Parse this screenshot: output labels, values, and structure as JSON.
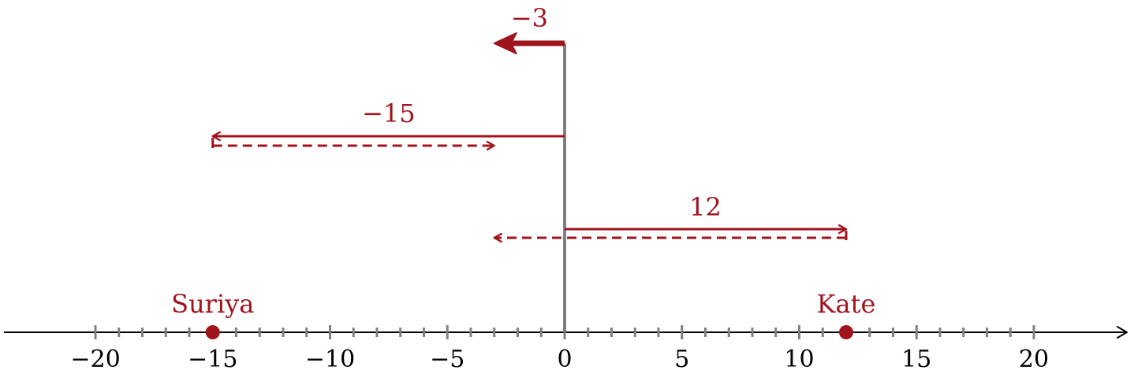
{
  "colors": {
    "accent": "#a0141e",
    "axis": "#000000",
    "tick": "#808080",
    "zero_line": "#808080"
  },
  "number_line": {
    "min": -24,
    "max": 24,
    "minor_tick_step": 1,
    "tick_labels": [
      {
        "value": -20,
        "text": "−20"
      },
      {
        "value": -15,
        "text": "−15"
      },
      {
        "value": -10,
        "text": "−10"
      },
      {
        "value": -5,
        "text": "−5"
      },
      {
        "value": 0,
        "text": "0"
      },
      {
        "value": 5,
        "text": "5"
      },
      {
        "value": 10,
        "text": "10"
      },
      {
        "value": 15,
        "text": "15"
      },
      {
        "value": 20,
        "text": "20"
      }
    ]
  },
  "points": [
    {
      "value": -15,
      "label": "Suriya"
    },
    {
      "value": 12,
      "label": "Kate"
    }
  ],
  "arrows": [
    {
      "label": "−3",
      "from": 0,
      "to": -3,
      "style": "bold"
    },
    {
      "label": "−15",
      "from": 0,
      "to": -15,
      "style": "solid",
      "dashed_from": -15,
      "dashed_to": -3
    },
    {
      "label": "12",
      "from": 0,
      "to": 12,
      "style": "solid",
      "dashed_from": 12,
      "dashed_to": -3
    }
  ]
}
